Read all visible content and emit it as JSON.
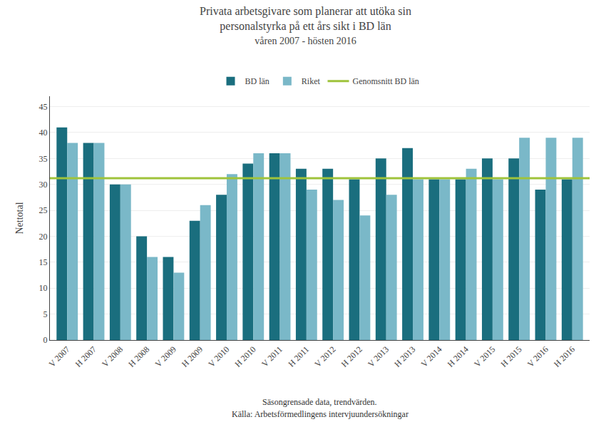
{
  "chart_data": {
    "type": "bar",
    "title": "Privata arbetsgivare som planerar att utöka sin\npersonalstyrka på ett års sikt i BD län",
    "subtitle": "våren 2007 - hösten 2016",
    "y_label": "Nettotal",
    "categories": [
      "V 2007",
      "H 2007",
      "V 2008",
      "H 2008",
      "V 2009",
      "H 2009",
      "V 2010",
      "H 2010",
      "V 2011",
      "H 2011",
      "V 2012",
      "H 2012",
      "V 2013",
      "H 2013",
      "V 2014",
      "H 2014",
      "V 2015",
      "H 2015",
      "V 2016",
      "H 2016"
    ],
    "series": [
      {
        "name": "BD län",
        "color": "#1a6e7e",
        "values": [
          41,
          38,
          30,
          20,
          16,
          23,
          28,
          34,
          36,
          33,
          33,
          31,
          35,
          37,
          31,
          31,
          35,
          35,
          29,
          31
        ]
      },
      {
        "name": "Riket",
        "color": "#7ab8c8",
        "values": [
          38,
          38,
          30,
          16,
          13,
          26,
          32,
          36,
          36,
          29,
          27,
          24,
          28,
          31,
          31,
          33,
          31,
          39,
          39,
          39
        ]
      }
    ],
    "reference_line": {
      "name": "Genomsnitt BD län",
      "value": 31.2,
      "color": "#9fc33b"
    },
    "ylim": [
      0,
      47
    ],
    "yticks": [
      0,
      5,
      10,
      15,
      20,
      25,
      30,
      35,
      40,
      45
    ],
    "grid": true,
    "annotations": [
      "Säsongrensade data, trendvärden.",
      "Källa: Arbetsförmedlingens intervjuundersökningar"
    ]
  }
}
